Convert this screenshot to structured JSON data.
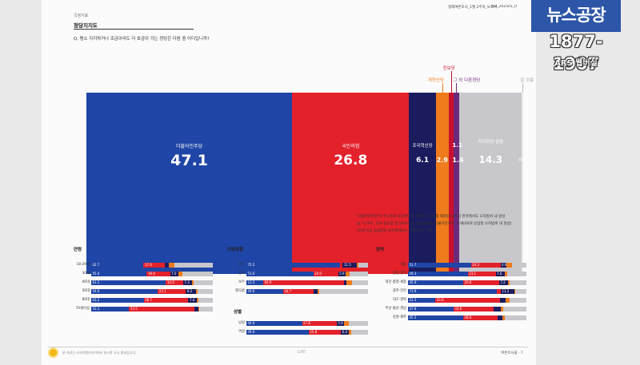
{
  "report": {
    "section_small": "국정지표",
    "section_title": "정당지지도",
    "question": "Q. 평소 지지하거나 조금이라도 더 호감이 가는 정당은 다음 중 어디입니까?",
    "header_meta_left": "정례여론조사_1월 2주차_보고서",
    "header_meta_right": "KIR_202501_0",
    "footer_note": "본 자료는 리서치앤리서치에서 실시한 조사 결과입니다.",
    "footer_center": "CATI",
    "footer_right": "여론조사꽃 · 7"
  },
  "overlay": {
    "channel_logo": "뉴스공장",
    "years": "1877-1907",
    "ars_badge": "ARS 웹버실"
  },
  "notes": [
    "'더불어민주당'이 수도권과 호남권에서 우세했고, TK를 제외한 나머지 권역에서도 오차범위 내 앞섰",
    "남. 나 모두, 진보·중도층 및 50대 이하 연령층에서 '더불어민주당' 우세(60대 응답층 오차범위 내 앞섬)",
    "70세 이상 응답층과 보수층에서는 '국민의힘' 우세"
  ],
  "colors": {
    "dem": "#1f45a6",
    "ppp": "#e3212b",
    "rebuild": "#1b1c5e",
    "reform": "#ef7b1c",
    "progressive": "#c8102e",
    "basic_income": "#6b2b7a",
    "none": "#c7c7cc",
    "dontknow": "#ebebed"
  },
  "chart_data": [
    {
      "type": "bar",
      "orientation": "horizontal-stacked",
      "title": "",
      "unit": "%",
      "series": [
        {
          "key": "dem",
          "name": "더불어민주당",
          "value": 47.1
        },
        {
          "key": "ppp",
          "name": "국민의힘",
          "value": 26.8
        },
        {
          "key": "rebuild",
          "name": "조국혁신당",
          "value": 6.1
        },
        {
          "key": "reform",
          "name": "개혁신당",
          "value": 2.9
        },
        {
          "key": "progressive",
          "name": "진보당",
          "value": 1.1
        },
        {
          "key": "basic_income",
          "name": "그 외 다른정당",
          "value": 1.4
        },
        {
          "key": "none",
          "name": "지지정당 없음",
          "value": 14.3
        },
        {
          "key": "dontknow",
          "name": "잘 모름",
          "value": 0.3
        }
      ]
    },
    {
      "type": "bar",
      "orientation": "horizontal-stacked",
      "title": "연령",
      "categories": [
        "18-29세",
        "30대",
        "40대",
        "50대",
        "60대",
        "70세이상"
      ],
      "series": [
        {
          "key": "dem",
          "values": [
            42.7,
            45.4,
            61.2,
            54.6,
            43.2,
            31.1
          ]
        },
        {
          "key": "ppp",
          "values": [
            17.0,
            19.0,
            14.0,
            23.1,
            36.7,
            53.5
          ]
        },
        {
          "key": "rebuild",
          "values": [
            3.5,
            7.0,
            7.3,
            8.2,
            7.0,
            3.4
          ]
        },
        {
          "key": "reform",
          "values": [
            4.5,
            2.9,
            1.5,
            1.2,
            1.0,
            0.8
          ]
        },
        {
          "key": "none",
          "values": [
            31.4,
            25.0,
            15.5,
            12.6,
            12.1,
            11.0
          ]
        }
      ],
      "value_labels": {
        "dem": [
          "42.7",
          "45.4",
          "61.2",
          "54.6",
          "43.2",
          "31.1"
        ],
        "ppp": [
          "17.0",
          "19.0",
          "14.0",
          "23.1",
          "36.7",
          "53.5"
        ],
        "rebuild": [
          "",
          "7.0",
          "7.3",
          "8.2",
          "7.0",
          ""
        ]
      }
    },
    {
      "type": "bar",
      "orientation": "horizontal-stacked",
      "title": "이념성향",
      "categories": [
        "진보",
        "중도",
        "보수",
        "잘모름"
      ],
      "series": [
        {
          "key": "dem",
          "values": [
            75.5,
            53.6,
            13.5,
            29.6
          ]
        },
        {
          "key": "ppp",
          "values": [
            2.5,
            20.0,
            64.9,
            24.7
          ]
        },
        {
          "key": "rebuild",
          "values": [
            11.5,
            5.9,
            2.0,
            3.0
          ]
        },
        {
          "key": "reform",
          "values": [
            1.0,
            3.0,
            4.0,
            1.2
          ]
        },
        {
          "key": "none",
          "values": [
            8.0,
            15.0,
            13.0,
            39.7
          ]
        }
      ],
      "value_labels": {
        "dem": [
          "75.5",
          "53.6",
          "13.5",
          "29.6"
        ],
        "ppp": [
          "",
          "20.0",
          "64.9",
          "24.7"
        ],
        "rebuild": [
          "11.5",
          "5.9",
          "",
          ""
        ]
      }
    },
    {
      "type": "bar",
      "orientation": "horizontal-stacked",
      "title": "성별",
      "categories": [
        "남성",
        "여성"
      ],
      "series": [
        {
          "key": "dem",
          "values": [
            44.6,
            49.6
          ]
        },
        {
          "key": "ppp",
          "values": [
            27.8,
            25.8
          ]
        },
        {
          "key": "rebuild",
          "values": [
            5.9,
            6.4
          ]
        },
        {
          "key": "reform",
          "values": [
            4.0,
            1.8
          ]
        },
        {
          "key": "none",
          "values": [
            15.2,
            13.4
          ]
        }
      ],
      "value_labels": {
        "dem": [
          "44.6",
          "49.6"
        ],
        "ppp": [
          "27.8",
          "25.8"
        ],
        "rebuild": [
          "5.9",
          "6.4"
        ]
      }
    },
    {
      "type": "bar",
      "orientation": "horizontal-stacked",
      "title": "권역",
      "categories": [
        "서울",
        "인천·경기",
        "대전·충청·세종",
        "광주·전라",
        "대구·경북",
        "부산·울산·경남",
        "강원·제주"
      ],
      "series": [
        {
          "key": "dem",
          "values": [
            51.7,
            49.3,
            45.9,
            73.9,
            22.5,
            37.8,
            45.5
          ]
        },
        {
          "key": "ppp",
          "values": [
            24.3,
            23.1,
            29.8,
            3.0,
            53.0,
            33.0,
            28.6
          ]
        },
        {
          "key": "rebuild",
          "values": [
            4.9,
            7.6,
            7.2,
            11.2,
            5.0,
            6.0,
            4.0
          ]
        },
        {
          "key": "reform",
          "values": [
            4.4,
            2.0,
            1.5,
            1.0,
            3.0,
            2.5,
            1.5
          ]
        },
        {
          "key": "none",
          "values": [
            12.0,
            15.7,
            14.0,
            9.0,
            14.0,
            19.0,
            18.0
          ]
        }
      ],
      "value_labels": {
        "dem": [
          "51.7",
          "49.3",
          "45.9",
          "73.9",
          "22.5",
          "37.8",
          "45.5"
        ],
        "ppp": [
          "24.3",
          "23.1",
          "29.8",
          "",
          "53.0",
          "33.0",
          "28.6"
        ],
        "rebuild": [
          "4.9",
          "7.6",
          "7.2",
          "11.2",
          "",
          "",
          ""
        ]
      }
    }
  ]
}
